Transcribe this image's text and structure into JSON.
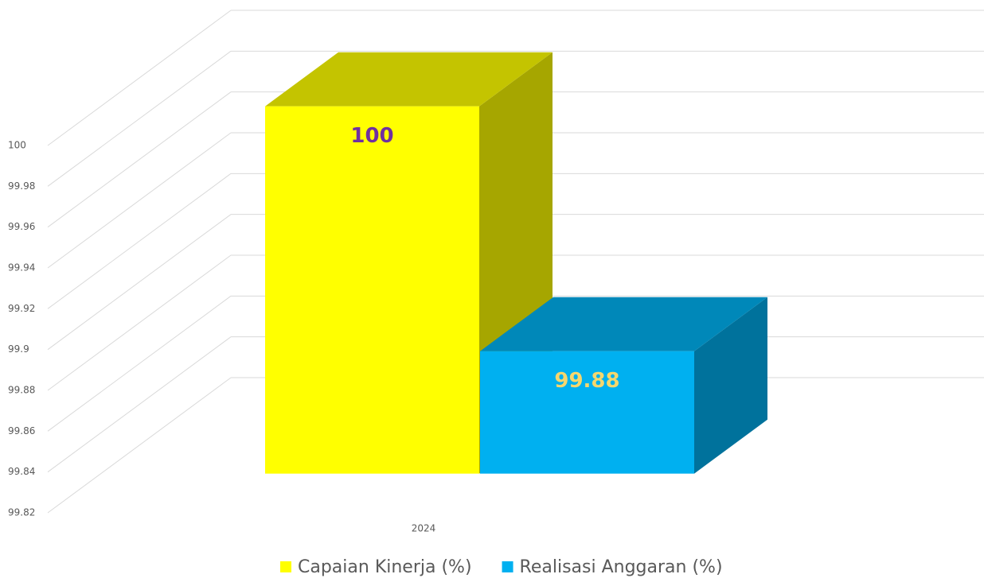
{
  "chart_data": {
    "type": "bar3d",
    "categories": [
      "2024"
    ],
    "series": [
      {
        "name": "Capaian Kinerja (%)",
        "color": "#ffff00",
        "label_color": "#7030a0",
        "values": [
          100
        ]
      },
      {
        "name": "Realisasi Anggaran (%)",
        "color": "#00b0f0",
        "label_color": "#f5d76e",
        "values": [
          99.88
        ]
      }
    ],
    "ylim": [
      99.82,
      100
    ],
    "yticks": [
      99.82,
      99.84,
      99.86,
      99.88,
      99.9,
      99.92,
      99.94,
      99.96,
      99.98,
      100
    ],
    "grid": true,
    "legend": "bottom"
  }
}
